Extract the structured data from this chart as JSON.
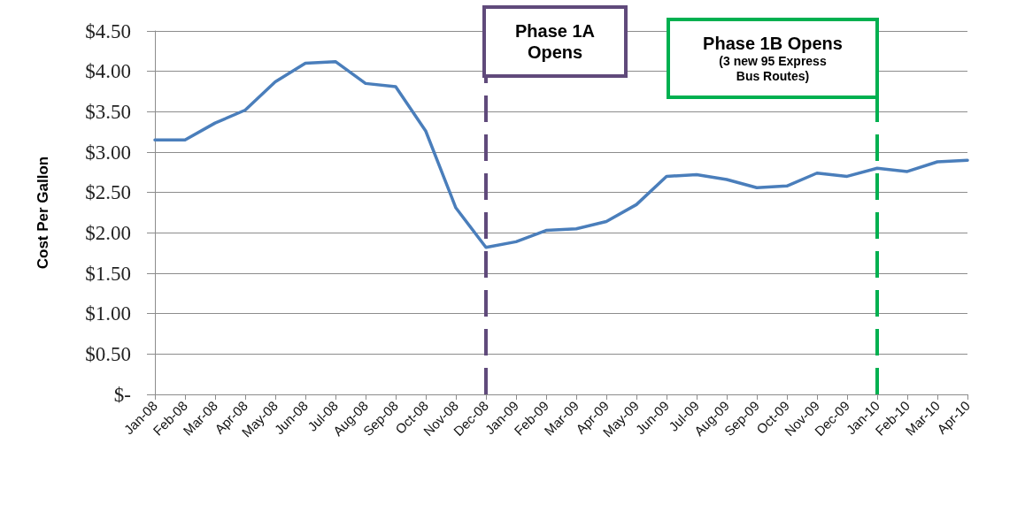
{
  "chart_data": {
    "type": "line",
    "ylabel": "Cost Per Gallon",
    "categories": [
      "Jan-08",
      "Feb-08",
      "Mar-08",
      "Apr-08",
      "May-08",
      "Jun-08",
      "Jul-08",
      "Aug-08",
      "Sep-08",
      "Oct-08",
      "Nov-08",
      "Dec-08",
      "Jan-09",
      "Feb-09",
      "Mar-09",
      "Apr-09",
      "May-09",
      "Jun-09",
      "Jul-09",
      "Aug-09",
      "Sep-09",
      "Oct-09",
      "Nov-09",
      "Dec-09",
      "Jan-10",
      "Feb-10",
      "Mar-10",
      "Apr-10"
    ],
    "series": [
      {
        "color": "#4a7ebb",
        "values": [
          3.15,
          3.15,
          3.36,
          3.52,
          3.87,
          4.1,
          4.12,
          3.85,
          3.81,
          3.26,
          2.31,
          1.82,
          1.89,
          2.03,
          2.05,
          2.14,
          2.35,
          2.7,
          2.72,
          2.66,
          2.56,
          2.58,
          2.74,
          2.7,
          2.8,
          2.76,
          2.88,
          2.9
        ]
      }
    ],
    "ylim": [
      0,
      4.5
    ],
    "yticks": [
      {
        "value": 0,
        "label": "$-"
      },
      {
        "value": 0.5,
        "label": "$0.50"
      },
      {
        "value": 1,
        "label": "$1.00"
      },
      {
        "value": 1.5,
        "label": "$1.50"
      },
      {
        "value": 2,
        "label": "$2.00"
      },
      {
        "value": 2.5,
        "label": "$2.50"
      },
      {
        "value": 3,
        "label": "$3.00"
      },
      {
        "value": 3.5,
        "label": "$3.50"
      },
      {
        "value": 4,
        "label": "$4.00"
      },
      {
        "value": 4.5,
        "label": "$4.50"
      }
    ],
    "grid": "y",
    "marker": "none",
    "line_style": "solid",
    "ref_lines": [
      {
        "axis": "x",
        "value": "Dec-08",
        "label": "Phase 1A Opens",
        "color": "#604a7b",
        "line_style": "dashed"
      },
      {
        "axis": "x",
        "value": "Jan-10",
        "label": "Phase 1B Opens\n(3 new 95 Express Bus Routes)",
        "color": "#00b050",
        "line_style": "dashed"
      }
    ]
  }
}
